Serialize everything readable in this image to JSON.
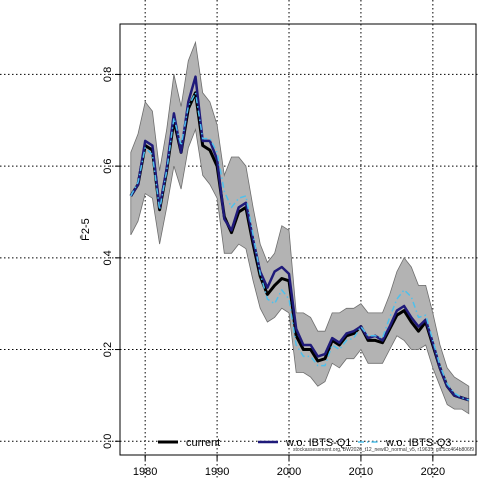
{
  "chart_data": {
    "type": "line",
    "title": "",
    "xlabel": "",
    "ylabel": "F̄2-5",
    "xlim": [
      1976.5,
      2026
    ],
    "ylim": [
      -0.03,
      0.91
    ],
    "x_ticks": [
      1980,
      1990,
      2000,
      2010,
      2020
    ],
    "x_tick_labels": [
      "1980",
      "1990",
      "2000",
      "2010",
      "2020"
    ],
    "y_ticks": [
      0.0,
      0.2,
      0.4,
      0.6,
      0.8
    ],
    "y_tick_labels": [
      "0.0",
      "0.2",
      "0.4",
      "0.6",
      "0.8"
    ],
    "grid": true,
    "legend_position": "bottom",
    "footnote": "stockassessment.org, BW2026_t12_newID_normal_v5, r19635, git:1cc464b806f9",
    "x": [
      1978,
      1979,
      1980,
      1981,
      1982,
      1983,
      1984,
      1985,
      1986,
      1987,
      1988,
      1989,
      1990,
      1991,
      1992,
      1993,
      1994,
      1995,
      1996,
      1997,
      1998,
      1999,
      2000,
      2001,
      2002,
      2003,
      2004,
      2005,
      2006,
      2007,
      2008,
      2009,
      2010,
      2011,
      2012,
      2013,
      2014,
      2015,
      2016,
      2017,
      2018,
      2019,
      2020,
      2021,
      2022,
      2023,
      2024,
      2025
    ],
    "band": {
      "upper": [
        0.63,
        0.67,
        0.74,
        0.72,
        0.59,
        0.68,
        0.8,
        0.73,
        0.83,
        0.87,
        0.76,
        0.74,
        0.69,
        0.58,
        0.62,
        0.62,
        0.6,
        0.51,
        0.43,
        0.39,
        0.41,
        0.47,
        0.46,
        0.28,
        0.28,
        0.27,
        0.24,
        0.24,
        0.28,
        0.28,
        0.29,
        0.29,
        0.3,
        0.28,
        0.28,
        0.28,
        0.32,
        0.37,
        0.4,
        0.38,
        0.34,
        0.34,
        0.28,
        0.21,
        0.16,
        0.14,
        0.13,
        0.12
      ],
      "lower": [
        0.45,
        0.48,
        0.54,
        0.53,
        0.43,
        0.51,
        0.6,
        0.55,
        0.64,
        0.68,
        0.58,
        0.56,
        0.53,
        0.41,
        0.41,
        0.43,
        0.42,
        0.35,
        0.29,
        0.26,
        0.27,
        0.29,
        0.28,
        0.15,
        0.15,
        0.14,
        0.12,
        0.13,
        0.17,
        0.16,
        0.18,
        0.18,
        0.2,
        0.17,
        0.17,
        0.17,
        0.2,
        0.23,
        0.22,
        0.2,
        0.2,
        0.21,
        0.16,
        0.12,
        0.08,
        0.07,
        0.07,
        0.06
      ]
    },
    "series": [
      {
        "name": "current",
        "color": "#000000",
        "dash": "solid",
        "values": [
          0.535,
          0.56,
          0.645,
          0.635,
          0.505,
          0.59,
          0.7,
          0.63,
          0.725,
          0.76,
          0.645,
          0.635,
          0.6,
          0.49,
          0.455,
          0.5,
          0.51,
          0.43,
          0.36,
          0.32,
          0.34,
          0.355,
          0.35,
          0.23,
          0.2,
          0.2,
          0.175,
          0.18,
          0.22,
          0.21,
          0.23,
          0.235,
          0.25,
          0.22,
          0.22,
          0.215,
          0.245,
          0.275,
          0.285,
          0.26,
          0.24,
          0.26,
          0.21,
          0.16,
          0.12,
          0.1,
          0.095,
          0.09
        ]
      },
      {
        "name": "w.o. IBTS-Q1",
        "color": "#1f1a7a",
        "dash": "solid",
        "values": [
          0.535,
          0.56,
          0.655,
          0.645,
          0.51,
          0.595,
          0.715,
          0.63,
          0.74,
          0.795,
          0.655,
          0.655,
          0.615,
          0.485,
          0.46,
          0.51,
          0.52,
          0.44,
          0.37,
          0.335,
          0.37,
          0.38,
          0.365,
          0.245,
          0.21,
          0.21,
          0.185,
          0.19,
          0.225,
          0.215,
          0.235,
          0.24,
          0.25,
          0.225,
          0.23,
          0.22,
          0.25,
          0.285,
          0.295,
          0.27,
          0.25,
          0.265,
          0.215,
          0.16,
          0.12,
          0.1,
          0.095,
          0.09
        ]
      },
      {
        "name": "w.o. IBTS-Q3",
        "color": "#4ec0ec",
        "dash": "dashdot",
        "values": [
          0.535,
          0.565,
          0.64,
          0.625,
          0.505,
          0.59,
          0.705,
          0.645,
          0.73,
          0.76,
          0.66,
          0.66,
          0.63,
          0.545,
          0.51,
          0.53,
          0.535,
          0.45,
          0.365,
          0.31,
          0.3,
          0.33,
          0.31,
          0.21,
          0.185,
          0.185,
          0.165,
          0.165,
          0.21,
          0.2,
          0.22,
          0.225,
          0.25,
          0.23,
          0.23,
          0.225,
          0.27,
          0.31,
          0.33,
          0.315,
          0.27,
          0.275,
          0.22,
          0.165,
          0.125,
          0.105,
          0.095,
          0.09
        ]
      }
    ]
  }
}
